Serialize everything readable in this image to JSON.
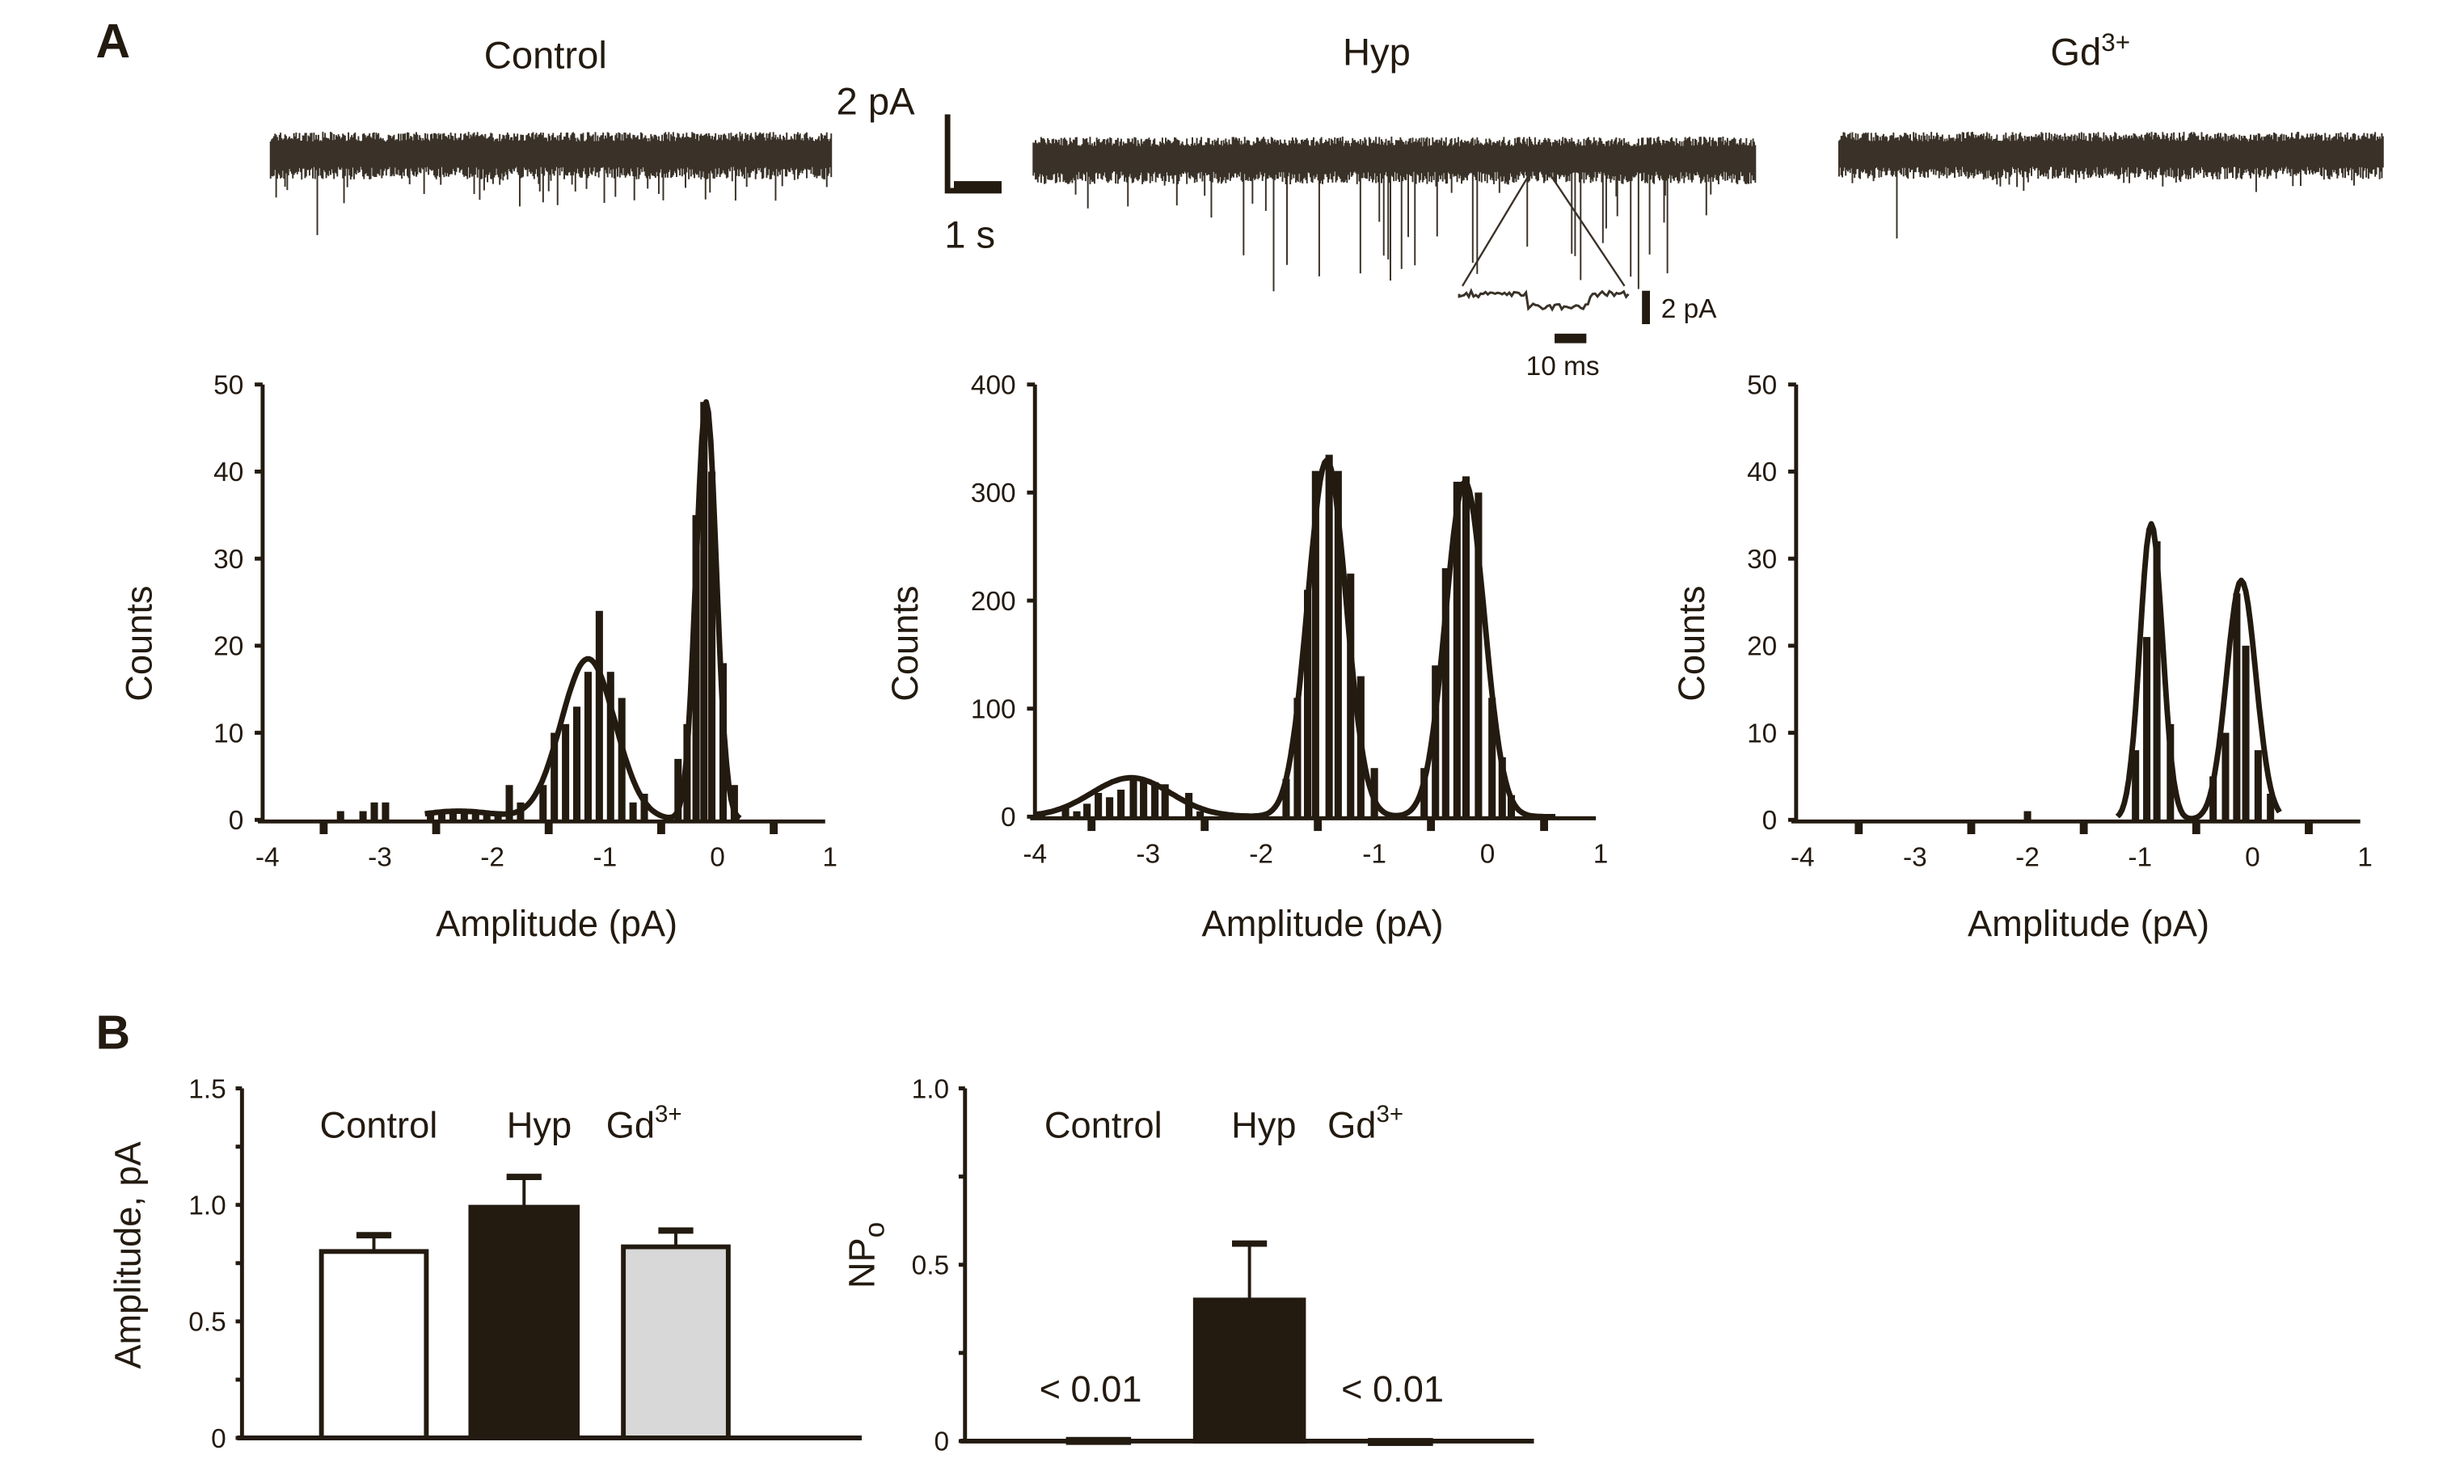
{
  "panel_labels": {
    "a": "A",
    "b": "B"
  },
  "colors": {
    "ink": "#231a10",
    "trace": "#3a3228",
    "gd_bar": "#d8d8d8",
    "control_bar": "#ffffff",
    "hyp_bar": "#231a10"
  },
  "traces": {
    "titles": {
      "control": "Control",
      "hyp": "Hyp",
      "gd_main": "Gd",
      "gd_sup": "3+"
    },
    "scale_bar": {
      "current": "2 pA",
      "time": "1 s"
    },
    "inset_scale_bar": {
      "current": "2 pA",
      "time": "10 ms"
    }
  },
  "chart_data": [
    {
      "type": "bar",
      "id": "histogram-control",
      "xlabel": "Amplitude (pA)",
      "ylabel": "Counts",
      "xlim": [
        -4,
        1
      ],
      "ylim": [
        0,
        50
      ],
      "xticks": [
        "-4",
        "-3",
        "-2",
        "-1",
        "0",
        "1"
      ],
      "yticks": [
        "0",
        "10",
        "20",
        "30",
        "40",
        "50"
      ],
      "bins": [
        [
          -3.35,
          1
        ],
        [
          -3.15,
          1
        ],
        [
          -3.05,
          2
        ],
        [
          -2.95,
          2
        ],
        [
          -2.55,
          1
        ],
        [
          -2.45,
          1
        ],
        [
          -2.35,
          1
        ],
        [
          -2.25,
          1
        ],
        [
          -2.15,
          1
        ],
        [
          -2.05,
          1
        ],
        [
          -1.95,
          1
        ],
        [
          -1.85,
          4
        ],
        [
          -1.75,
          2
        ],
        [
          -1.55,
          4
        ],
        [
          -1.45,
          10
        ],
        [
          -1.35,
          11
        ],
        [
          -1.25,
          13
        ],
        [
          -1.15,
          17
        ],
        [
          -1.05,
          24
        ],
        [
          -0.95,
          17
        ],
        [
          -0.85,
          14
        ],
        [
          -0.75,
          2
        ],
        [
          -0.65,
          3
        ],
        [
          -0.35,
          7
        ],
        [
          -0.27,
          11
        ],
        [
          -0.19,
          35
        ],
        [
          -0.12,
          48
        ],
        [
          -0.05,
          40
        ],
        [
          0.05,
          18
        ],
        [
          0.15,
          4
        ]
      ],
      "fit_components": [
        {
          "mean": -1.15,
          "amplitude": 18.5,
          "sd": 0.24
        },
        {
          "mean": -0.1,
          "amplitude": 48,
          "sd": 0.09
        },
        {
          "mean": -2.3,
          "amplitude": 1,
          "sd": 0.35
        }
      ],
      "fit_range": [
        -2.6,
        0.2
      ]
    },
    {
      "type": "bar",
      "id": "histogram-hyp",
      "xlabel": "Amplitude (pA)",
      "ylabel": "Counts",
      "xlim": [
        -4,
        1
      ],
      "ylim": [
        0,
        400
      ],
      "xticks": [
        "-4",
        "-3",
        "-2",
        "-1",
        "0",
        "1"
      ],
      "yticks": [
        "0",
        "100",
        "200",
        "300",
        "400"
      ],
      "bins": [
        [
          -3.94,
          5
        ],
        [
          -3.73,
          10
        ],
        [
          -3.63,
          5
        ],
        [
          -3.54,
          12
        ],
        [
          -3.44,
          22
        ],
        [
          -3.34,
          18
        ],
        [
          -3.24,
          25
        ],
        [
          -3.13,
          35
        ],
        [
          -3.04,
          35
        ],
        [
          -2.94,
          32
        ],
        [
          -2.85,
          30
        ],
        [
          -2.64,
          22
        ],
        [
          -2.54,
          5
        ],
        [
          -1.78,
          35
        ],
        [
          -1.68,
          110
        ],
        [
          -1.59,
          210
        ],
        [
          -1.52,
          320
        ],
        [
          -1.4,
          335
        ],
        [
          -1.32,
          320
        ],
        [
          -1.21,
          225
        ],
        [
          -1.12,
          130
        ],
        [
          -1.0,
          45
        ],
        [
          -0.56,
          45
        ],
        [
          -0.46,
          140
        ],
        [
          -0.37,
          230
        ],
        [
          -0.27,
          310
        ],
        [
          -0.19,
          315
        ],
        [
          -0.08,
          300
        ],
        [
          0.04,
          110
        ],
        [
          0.13,
          55
        ],
        [
          0.21,
          20
        ]
      ],
      "fit_components": [
        {
          "mean": -3.15,
          "amplitude": 36,
          "sd": 0.35
        },
        {
          "mean": -1.42,
          "amplitude": 330,
          "sd": 0.17
        },
        {
          "mean": -0.2,
          "amplitude": 310,
          "sd": 0.17
        }
      ],
      "fit_range": [
        -4,
        0.6
      ]
    },
    {
      "type": "bar",
      "id": "histogram-gd",
      "xlabel": "Amplitude (pA)",
      "ylabel": "Counts",
      "xlim": [
        -4,
        1
      ],
      "ylim": [
        0,
        50
      ],
      "xticks": [
        "-4",
        "-3",
        "-2",
        "-1",
        "0",
        "1"
      ],
      "yticks": [
        "0",
        "10",
        "20",
        "30",
        "40",
        "50"
      ],
      "bins": [
        [
          -2.0,
          1
        ],
        [
          -1.04,
          8
        ],
        [
          -0.94,
          21
        ],
        [
          -0.85,
          32
        ],
        [
          -0.73,
          11
        ],
        [
          -0.35,
          5
        ],
        [
          -0.24,
          10
        ],
        [
          -0.14,
          26
        ],
        [
          -0.06,
          20
        ],
        [
          0.05,
          8
        ],
        [
          0.16,
          3
        ]
      ],
      "fit_components": [
        {
          "mean": -0.9,
          "amplitude": 34,
          "sd": 0.1
        },
        {
          "mean": -0.1,
          "amplitude": 27.5,
          "sd": 0.13
        }
      ],
      "fit_range": [
        -1.2,
        0.25
      ]
    },
    {
      "type": "bar",
      "id": "amplitude-bars",
      "ylabel": "Amplitude, pA",
      "ylim": [
        0,
        1.5
      ],
      "yticks": [
        "0",
        "0.5",
        "1.0",
        "1.5"
      ],
      "categories": [
        {
          "main": "Control",
          "sup": ""
        },
        {
          "main": "Hyp",
          "sup": ""
        },
        {
          "main": "Gd",
          "sup": "3+"
        }
      ],
      "values": [
        0.8,
        0.99,
        0.82
      ],
      "errors": [
        0.07,
        0.13,
        0.07
      ]
    },
    {
      "type": "bar",
      "id": "npo-bars",
      "ylabel": "NP",
      "ylabel_sub": "o",
      "ylim": [
        0,
        1.0
      ],
      "yticks": [
        "0",
        "0.5",
        "1.0"
      ],
      "categories": [
        {
          "main": "Control",
          "sup": ""
        },
        {
          "main": "Hyp",
          "sup": ""
        },
        {
          "main": "Gd",
          "sup": "3+"
        }
      ],
      "values": [
        0.005,
        0.4,
        0.002
      ],
      "errors": [
        0,
        0.16,
        0
      ],
      "annotations": [
        "< 0.01",
        "",
        "< 0.01"
      ]
    }
  ]
}
